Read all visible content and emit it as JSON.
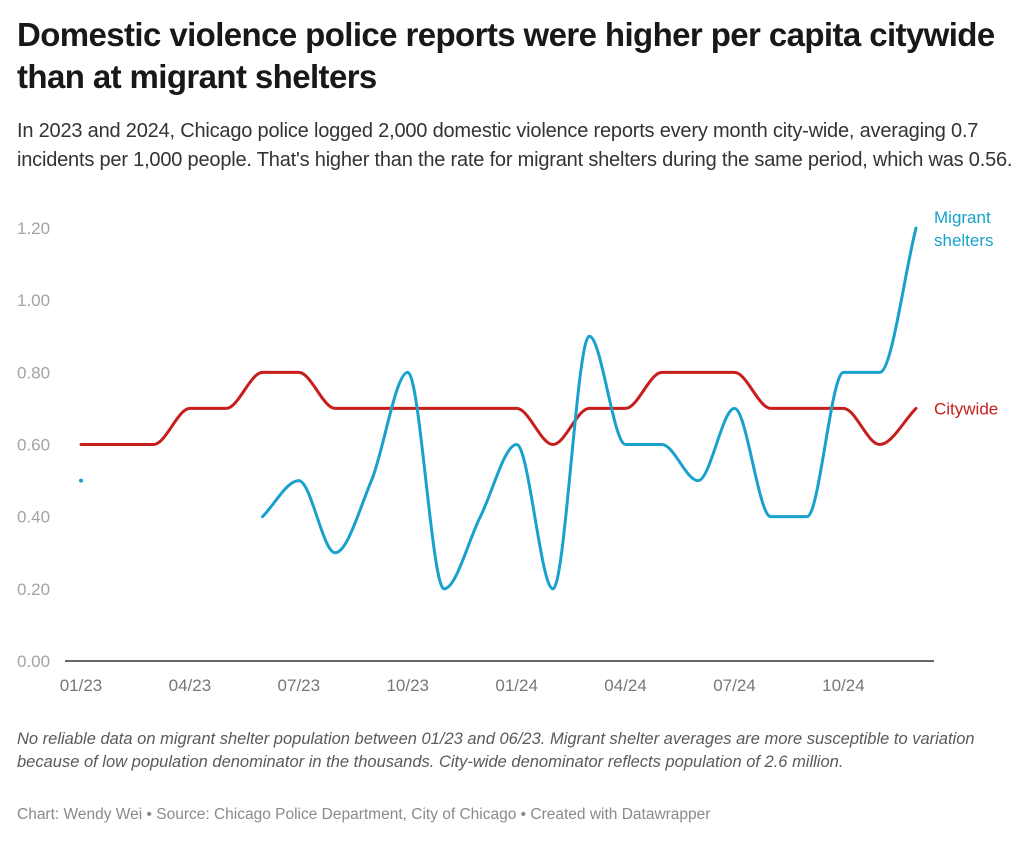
{
  "header": {
    "title": "Domestic violence police reports were higher per capita citywide than at migrant shelters",
    "subtitle": "In 2023 and 2024, Chicago police logged 2,000 domestic violence reports every month city-wide, averaging 0.7 incidents per 1,000 people. That's higher than the rate for migrant shelters during the same period, which was 0.56."
  },
  "chart_data": {
    "type": "line",
    "title": "Domestic violence police reports were higher per capita citywide than at migrant shelters",
    "xlabel": "",
    "ylabel": "",
    "ylim": [
      0,
      1.2
    ],
    "yticks": [
      "0.00",
      "0.20",
      "0.40",
      "0.60",
      "0.80",
      "1.00",
      "1.20"
    ],
    "ytick_values": [
      0,
      0.2,
      0.4,
      0.6,
      0.8,
      1.0,
      1.2
    ],
    "x": [
      "01/23",
      "02/23",
      "03/23",
      "04/23",
      "05/23",
      "06/23",
      "07/23",
      "08/23",
      "09/23",
      "10/23",
      "11/23",
      "12/23",
      "01/24",
      "02/24",
      "03/24",
      "04/24",
      "05/24",
      "06/24",
      "07/24",
      "08/24",
      "09/24",
      "10/24",
      "11/24",
      "12/24"
    ],
    "xticks": [
      "01/23",
      "04/23",
      "07/23",
      "10/23",
      "01/24",
      "04/24",
      "07/24",
      "10/24"
    ],
    "xtick_indices": [
      0,
      3,
      6,
      9,
      12,
      15,
      18,
      21
    ],
    "grid": false,
    "legend": "direct-labels-right",
    "series": [
      {
        "name": "Citywide",
        "label": "Citywide",
        "color": "#c71e1d",
        "values": [
          0.6,
          0.6,
          0.6,
          0.7,
          0.7,
          0.8,
          0.8,
          0.7,
          0.7,
          0.7,
          0.7,
          0.7,
          0.7,
          0.6,
          0.7,
          0.7,
          0.8,
          0.8,
          0.8,
          0.7,
          0.7,
          0.7,
          0.6,
          0.7
        ]
      },
      {
        "name": "Migrant shelters",
        "label_lines": [
          "Migrant",
          "shelters"
        ],
        "color": "#18a1cd",
        "values": [
          0.5,
          null,
          null,
          null,
          null,
          0.4,
          0.5,
          0.3,
          0.5,
          0.8,
          0.2,
          0.4,
          0.6,
          0.2,
          0.9,
          0.6,
          0.6,
          0.5,
          0.7,
          0.4,
          0.4,
          0.8,
          0.8,
          1.2
        ]
      }
    ]
  },
  "notes": "No reliable data on migrant shelter population between 01/23 and 06/23. Migrant shelter averages are more susceptible to variation because of low population denominator in the thousands. City-wide denominator reflects population of 2.6 million.",
  "footer": "Chart: Wendy Wei • Source: Chicago Police Department, City of Chicago • Created with Datawrapper"
}
